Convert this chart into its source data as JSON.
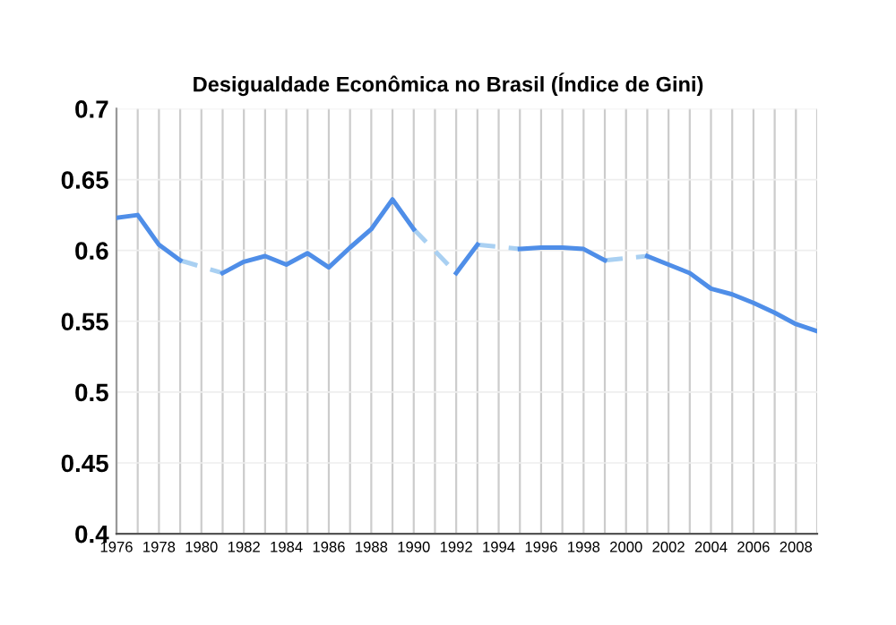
{
  "chart_data": {
    "type": "line",
    "title": "Desigualdade Econômica no Brasil (Índice de Gini)",
    "x": [
      1976,
      1977,
      1978,
      1979,
      1980,
      1981,
      1982,
      1983,
      1984,
      1985,
      1986,
      1987,
      1988,
      1989,
      1990,
      1991,
      1992,
      1993,
      1994,
      1995,
      1996,
      1997,
      1998,
      1999,
      2000,
      2001,
      2002,
      2003,
      2004,
      2005,
      2006,
      2007,
      2008,
      2009
    ],
    "series": [
      {
        "color": "#4f8ee8",
        "line_style": "solid",
        "values": [
          0.623,
          0.625,
          0.604,
          0.593,
          null,
          0.584,
          0.592,
          0.596,
          0.59,
          0.598,
          0.588,
          0.602,
          0.615,
          0.636,
          0.615,
          null,
          0.584,
          0.604,
          null,
          0.601,
          0.602,
          0.602,
          0.601,
          0.593,
          null,
          0.596,
          0.59,
          0.584,
          0.573,
          0.569,
          0.563,
          0.556,
          0.548,
          0.543
        ]
      },
      {
        "color": "#a9d0f2",
        "line_style": "dashed",
        "x": [
          1979,
          1981
        ],
        "values": [
          0.593,
          0.584
        ]
      },
      {
        "color": "#a9d0f2",
        "line_style": "dashed",
        "x": [
          1990,
          1992
        ],
        "values": [
          0.615,
          0.584
        ]
      },
      {
        "color": "#a9d0f2",
        "line_style": "dashed",
        "x": [
          1993,
          1995
        ],
        "values": [
          0.604,
          0.601
        ]
      },
      {
        "color": "#a9d0f2",
        "line_style": "dashed",
        "x": [
          1999,
          2001
        ],
        "values": [
          0.593,
          0.596
        ]
      }
    ],
    "xlim": [
      1976,
      2009
    ],
    "xticks": [
      1976,
      {
        "value": 1977,
        "label": null
      },
      1978,
      {
        "value": 1979,
        "label": null
      },
      1980,
      {
        "value": 1981,
        "label": null
      },
      1982,
      {
        "value": 1983,
        "label": null
      },
      1984,
      {
        "value": 1985,
        "label": null
      },
      1986,
      {
        "value": 1987,
        "label": null
      },
      1988,
      {
        "value": 1989,
        "label": null
      },
      1990,
      {
        "value": 1991,
        "label": null
      },
      1992,
      {
        "value": 1993,
        "label": null
      },
      1994,
      {
        "value": 1995,
        "label": null
      },
      1996,
      {
        "value": 1997,
        "label": null
      },
      1998,
      {
        "value": 1999,
        "label": null
      },
      2000,
      {
        "value": 2001,
        "label": null
      },
      2002,
      {
        "value": 2003,
        "label": null
      },
      2004,
      {
        "value": 2005,
        "label": null
      },
      2006,
      {
        "value": 2007,
        "label": null
      },
      2008,
      {
        "value": 2009,
        "label": null
      }
    ],
    "ylim": [
      0.4,
      0.7
    ],
    "yticks": [
      0.4,
      0.45,
      0.5,
      0.55,
      0.6,
      0.65,
      0.7
    ],
    "grid": true
  }
}
